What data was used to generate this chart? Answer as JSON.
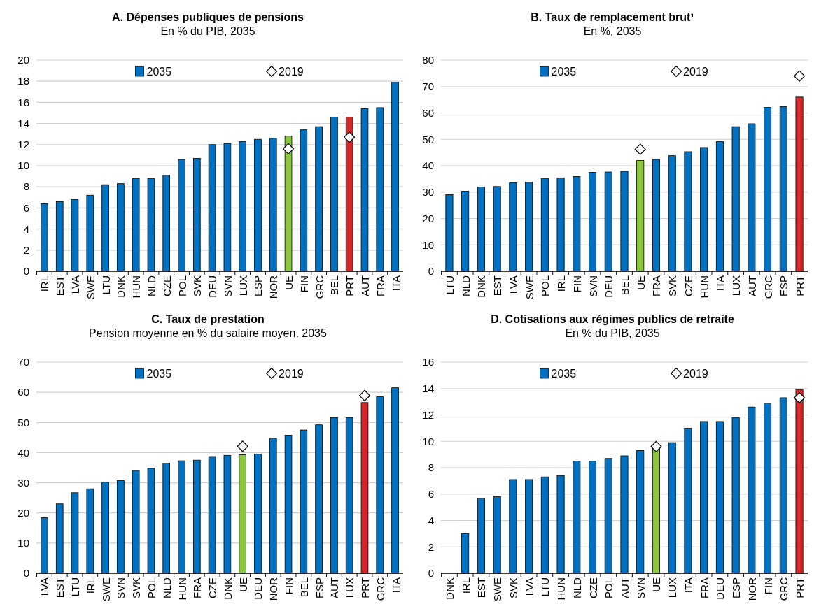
{
  "chart_data": [
    {
      "type": "bar",
      "title": "A. Dépenses publiques de pensions",
      "subtitle": "En % du PIB, 2035",
      "categories": [
        "IRL",
        "EST",
        "LVA",
        "SWE",
        "LTU",
        "DNK",
        "HUN",
        "NLD",
        "CZE",
        "POL",
        "SVK",
        "DEU",
        "SVN",
        "LUX",
        "ESP",
        "NOR",
        "UE",
        "FIN",
        "GRC",
        "BEL",
        "PRT",
        "AUT",
        "FRA",
        "ITA"
      ],
      "ylim": [
        0,
        20
      ],
      "yticks": [
        0,
        2,
        4,
        6,
        8,
        10,
        12,
        14,
        16,
        18,
        20
      ],
      "grid": "y",
      "legend": "top",
      "series": [
        {
          "name": "2035",
          "type": "bar",
          "color": "#0070c0",
          "colors": [
            "#0070c0",
            "#0070c0",
            "#0070c0",
            "#0070c0",
            "#0070c0",
            "#0070c0",
            "#0070c0",
            "#0070c0",
            "#0070c0",
            "#0070c0",
            "#0070c0",
            "#0070c0",
            "#0070c0",
            "#0070c0",
            "#0070c0",
            "#0070c0",
            "#8cc63f",
            "#0070c0",
            "#0070c0",
            "#0070c0",
            "#d62828",
            "#0070c0",
            "#0070c0",
            "#0070c0"
          ],
          "values": [
            6.4,
            6.6,
            6.8,
            7.2,
            8.2,
            8.3,
            8.8,
            8.8,
            9.1,
            10.6,
            10.7,
            12.0,
            12.1,
            12.3,
            12.5,
            12.6,
            12.8,
            13.4,
            13.7,
            14.6,
            14.6,
            15.4,
            15.5,
            17.9
          ]
        },
        {
          "name": "2019",
          "type": "scatter",
          "marker": "diamond",
          "color": "#ffffff",
          "x": [
            "UE",
            "PRT"
          ],
          "values": [
            11.6,
            12.7
          ]
        }
      ]
    },
    {
      "type": "bar",
      "title": "B. Taux de remplacement brut¹",
      "subtitle": "En %, 2035",
      "categories": [
        "LTU",
        "NLD",
        "DNK",
        "EST",
        "LVA",
        "SWE",
        "POL",
        "IRL",
        "FIN",
        "SVN",
        "DEU",
        "BEL",
        "UE",
        "FRA",
        "SVK",
        "CZE",
        "HUN",
        "ITA",
        "LUX",
        "AUT",
        "GRC",
        "ESP",
        "PRT"
      ],
      "ylim": [
        0,
        80
      ],
      "yticks": [
        0,
        10,
        20,
        30,
        40,
        50,
        60,
        70,
        80
      ],
      "grid": "y",
      "legend": "top",
      "series": [
        {
          "name": "2035",
          "type": "bar",
          "color": "#0070c0",
          "colors": [
            "#0070c0",
            "#0070c0",
            "#0070c0",
            "#0070c0",
            "#0070c0",
            "#0070c0",
            "#0070c0",
            "#0070c0",
            "#0070c0",
            "#0070c0",
            "#0070c0",
            "#0070c0",
            "#8cc63f",
            "#0070c0",
            "#0070c0",
            "#0070c0",
            "#0070c0",
            "#0070c0",
            "#0070c0",
            "#0070c0",
            "#0070c0",
            "#0070c0",
            "#d62828"
          ],
          "values": [
            29.0,
            30.3,
            31.9,
            32.1,
            33.5,
            33.7,
            35.2,
            35.4,
            35.9,
            37.5,
            37.6,
            37.9,
            42.0,
            42.4,
            43.8,
            45.3,
            46.9,
            49.2,
            54.8,
            55.9,
            62.1,
            62.4,
            66.0
          ]
        },
        {
          "name": "2019",
          "type": "scatter",
          "marker": "diamond",
          "color": "#ffffff",
          "x": [
            "UE",
            "PRT"
          ],
          "values": [
            46.2,
            74.0
          ]
        }
      ]
    },
    {
      "type": "bar",
      "title": "C. Taux de prestation",
      "subtitle": "Pension moyenne en % du salaire moyen, 2035",
      "categories": [
        "LVA",
        "EST",
        "LTU",
        "IRL",
        "SWE",
        "SVN",
        "SVK",
        "POL",
        "NLD",
        "HUN",
        "FRA",
        "CZE",
        "DNK",
        "UE",
        "DEU",
        "NOR",
        "FIN",
        "BEL",
        "ESP",
        "AUT",
        "LUX",
        "PRT",
        "GRC",
        "ITA"
      ],
      "ylim": [
        0,
        70
      ],
      "yticks": [
        0,
        10,
        20,
        30,
        40,
        50,
        60,
        70
      ],
      "grid": "y",
      "legend": "top",
      "series": [
        {
          "name": "2035",
          "type": "bar",
          "color": "#0070c0",
          "colors": [
            "#0070c0",
            "#0070c0",
            "#0070c0",
            "#0070c0",
            "#0070c0",
            "#0070c0",
            "#0070c0",
            "#0070c0",
            "#0070c0",
            "#0070c0",
            "#0070c0",
            "#0070c0",
            "#0070c0",
            "#8cc63f",
            "#0070c0",
            "#0070c0",
            "#0070c0",
            "#0070c0",
            "#0070c0",
            "#0070c0",
            "#0070c0",
            "#d62828",
            "#0070c0",
            "#0070c0"
          ],
          "values": [
            18.4,
            23.0,
            26.7,
            28.0,
            30.2,
            30.7,
            34.1,
            34.8,
            36.5,
            37.3,
            37.5,
            38.7,
            39.1,
            39.3,
            39.5,
            44.8,
            45.8,
            47.5,
            49.2,
            51.6,
            51.6,
            56.6,
            58.5,
            61.5
          ]
        },
        {
          "name": "2019",
          "type": "scatter",
          "marker": "diamond",
          "color": "#ffffff",
          "x": [
            "UE",
            "PRT"
          ],
          "values": [
            42.1,
            58.9
          ]
        }
      ]
    },
    {
      "type": "bar",
      "title": "D. Cotisations aux régimes publics de retraite",
      "subtitle": "En % du PIB, 2035",
      "categories": [
        "DNK",
        "IRL",
        "EST",
        "SWE",
        "SVK",
        "LVA",
        "LTU",
        "HUN",
        "NLD",
        "CZE",
        "POL",
        "AUT",
        "SVN",
        "UE",
        "LUX",
        "ITA",
        "FRA",
        "DEU",
        "ESP",
        "NOR",
        "FIN",
        "GRC",
        "PRT"
      ],
      "ylim": [
        0,
        16
      ],
      "yticks": [
        0,
        2,
        4,
        6,
        8,
        10,
        12,
        14,
        16
      ],
      "grid": "y",
      "legend": "top",
      "series": [
        {
          "name": "2035",
          "type": "bar",
          "color": "#0070c0",
          "colors": [
            "#0070c0",
            "#0070c0",
            "#0070c0",
            "#0070c0",
            "#0070c0",
            "#0070c0",
            "#0070c0",
            "#0070c0",
            "#0070c0",
            "#0070c0",
            "#0070c0",
            "#0070c0",
            "#0070c0",
            "#8cc63f",
            "#0070c0",
            "#0070c0",
            "#0070c0",
            "#0070c0",
            "#0070c0",
            "#0070c0",
            "#0070c0",
            "#0070c0",
            "#d62828"
          ],
          "values": [
            0.0,
            3.0,
            5.7,
            5.8,
            7.1,
            7.1,
            7.3,
            7.4,
            8.5,
            8.5,
            8.7,
            8.9,
            9.3,
            9.5,
            9.9,
            11.0,
            11.5,
            11.5,
            11.8,
            12.6,
            12.9,
            13.3,
            13.9
          ]
        },
        {
          "name": "2019",
          "type": "scatter",
          "marker": "diamond",
          "color": "#ffffff",
          "x": [
            "UE",
            "PRT"
          ],
          "values": [
            9.6,
            13.3
          ]
        }
      ]
    }
  ]
}
